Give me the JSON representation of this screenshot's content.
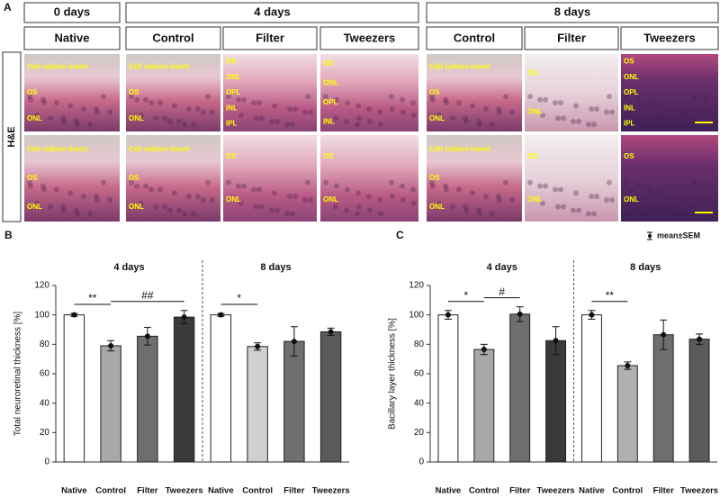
{
  "panel_a": {
    "label": "A",
    "row_label": "H&E",
    "groups": [
      {
        "title": "0 days",
        "columns": [
          "Native"
        ]
      },
      {
        "title": "4 days",
        "columns": [
          "Control",
          "Filter",
          "Tweezers"
        ]
      },
      {
        "title": "8 days",
        "columns": [
          "Control",
          "Filter",
          "Tweezers"
        ]
      }
    ],
    "images": [
      {
        "top": [
          "Cell culture insert",
          "OS",
          "ONL"
        ],
        "bottom": [
          "Cell culture insert",
          "OS",
          "ONL"
        ]
      },
      {
        "top": [
          "Cell culture insert",
          "OS",
          "ONL"
        ],
        "bottom": [
          "Cell culture insert",
          "OS",
          "ONL"
        ]
      },
      {
        "top": [
          "OS",
          "ONL",
          "OPL",
          "INL",
          "IPL"
        ],
        "bottom": [
          "OS",
          "ONL"
        ]
      },
      {
        "top": [
          "OS",
          "ONL",
          "OPL",
          "INL"
        ],
        "bottom": [
          "OS",
          "ONL"
        ]
      },
      {
        "top": [
          "Cell culture insert",
          "OS",
          "ONL"
        ],
        "bottom": [
          "Cell culture insert",
          "OS",
          "ONL"
        ]
      },
      {
        "top": [
          "OS",
          "ONL"
        ],
        "bottom": [
          "OS",
          "ONL"
        ]
      },
      {
        "top": [
          "OS",
          "ONL",
          "OPL",
          "INL",
          "IPL"
        ],
        "bottom": [
          "OS",
          "ONL"
        ]
      }
    ]
  },
  "chart_data": [
    {
      "type": "bar",
      "panel": "B",
      "ylabel": "Total neuroretinal thickness [%]",
      "ylim": [
        0,
        120
      ],
      "yticks": [
        0,
        20,
        40,
        60,
        80,
        100,
        120
      ],
      "groups": [
        {
          "name": "4 days",
          "categories": [
            "Native",
            "Control",
            "Filter",
            "Tweezers"
          ],
          "values": [
            100,
            79,
            85.5,
            98.5
          ],
          "errors": [
            1,
            3.5,
            6,
            4.5
          ],
          "colors": [
            "#ffffff",
            "#a8a8a8",
            "#6e6e6e",
            "#3a3a3a"
          ],
          "annotations": [
            {
              "label": "**",
              "between": [
                0,
                1
              ]
            },
            {
              "label": "##",
              "between": [
                1,
                3
              ]
            }
          ]
        },
        {
          "name": "8 days",
          "categories": [
            "Native",
            "Control",
            "Filter",
            "Tweezers"
          ],
          "values": [
            100,
            78.5,
            82,
            88.5
          ],
          "errors": [
            1,
            2.5,
            10,
            2.5
          ],
          "colors": [
            "#ffffff",
            "#d0d0d0",
            "#6e6e6e",
            "#5a5a5a"
          ],
          "annotations": [
            {
              "label": "*",
              "between": [
                0,
                1
              ]
            }
          ]
        }
      ]
    },
    {
      "type": "bar",
      "panel": "C",
      "ylabel": "Bacillary layer thickness [%]",
      "ylim": [
        0,
        120
      ],
      "yticks": [
        0,
        20,
        40,
        60,
        80,
        100,
        120
      ],
      "legend_label": "mean±SEM",
      "groups": [
        {
          "name": "4 days",
          "categories": [
            "Native",
            "Control",
            "Filter",
            "Tweezers"
          ],
          "values": [
            100,
            76.5,
            100.5,
            82.5
          ],
          "errors": [
            3,
            3.5,
            5,
            9.5
          ],
          "colors": [
            "#ffffff",
            "#a8a8a8",
            "#6e6e6e",
            "#3a3a3a"
          ],
          "annotations": [
            {
              "label": "*",
              "between": [
                0,
                1
              ]
            },
            {
              "label": "#",
              "between": [
                1,
                2
              ]
            }
          ]
        },
        {
          "name": "8 days",
          "categories": [
            "Native",
            "Control",
            "Filter",
            "Tweezers"
          ],
          "values": [
            100,
            65.5,
            86.5,
            83.5
          ],
          "errors": [
            3,
            2.5,
            10,
            3.5
          ],
          "colors": [
            "#ffffff",
            "#b0b0b0",
            "#6e6e6e",
            "#5a5a5a"
          ],
          "annotations": [
            {
              "label": "**",
              "between": [
                0,
                1
              ]
            }
          ]
        }
      ]
    }
  ]
}
